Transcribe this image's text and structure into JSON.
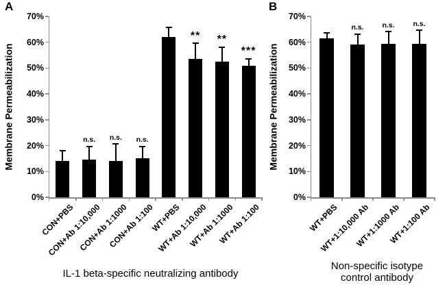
{
  "figure": {
    "background": "#ffffff",
    "bar_color": "#000000",
    "axis_color": "#8a8a8a",
    "text_color": "#000000"
  },
  "chart_data": [
    {
      "type": "bar",
      "panel_letter": "A",
      "title": "IL-1 beta-specific neutralizing antibody",
      "ylabel": "Membrane Permeabilization",
      "ylim": [
        0,
        70
      ],
      "grid": false,
      "legend": "none",
      "ytick_labels": [
        "70%",
        "60%",
        "50%",
        "40%",
        "30%",
        "20%",
        "10%",
        "0%"
      ],
      "categories": [
        "CON+PBS",
        "CON+Ab 1:10,000",
        "CON+Ab 1:1000",
        "CON+Ab 1:100",
        "WT+PBS",
        "WT+Ab 1:10,000",
        "WT+Ab 1:1000",
        "WT+Ab 1:100"
      ],
      "values": [
        14,
        14.5,
        14,
        15,
        62,
        53.5,
        52.5,
        51
      ],
      "error_up": [
        4,
        5,
        6.5,
        4.5,
        3.5,
        6,
        5.5,
        2.5
      ],
      "significance": [
        "",
        "n.s.",
        "n.s.",
        "n.s.",
        "",
        "**",
        "**",
        "***"
      ]
    },
    {
      "type": "bar",
      "panel_letter": "B",
      "title": "Non-specific isotype control antibody",
      "ylabel": "Membrane Permeabilization",
      "ylim": [
        0,
        70
      ],
      "grid": false,
      "legend": "none",
      "ytick_labels": [
        "70%",
        "60%",
        "50%",
        "40%",
        "30%",
        "20%",
        "10%",
        "0%"
      ],
      "categories": [
        "WT+PBS",
        "WT+1:10,000 Ab",
        "WT+1:1000 Ab",
        "WT+1:100 Ab"
      ],
      "values": [
        61.5,
        59,
        59.5,
        59.5
      ],
      "error_up": [
        2,
        4,
        4.5,
        5
      ],
      "significance": [
        "",
        "n.s.",
        "n.s.",
        "n.s."
      ]
    }
  ]
}
